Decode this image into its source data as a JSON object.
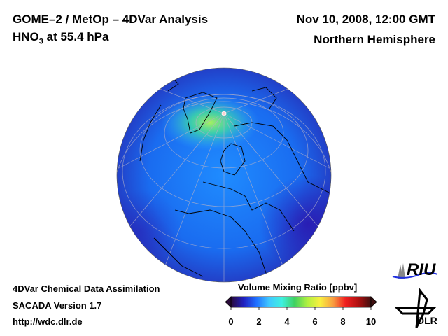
{
  "header": {
    "title_line1": "GOME–2 / MetOp – 4DVar Analysis",
    "species": "HNO",
    "species_sub": "3",
    "level_text": " at 55.4 hPa",
    "date": "Nov 10, 2008, 12:00 GMT",
    "region": "Northern Hemisphere"
  },
  "footer": {
    "line1": "4DVar Chemical Data Assimilation",
    "line2": "SACADA Version 1.7",
    "line3": "http://wdc.dlr.de"
  },
  "colorbar": {
    "title": "Volume Mixing Ratio [ppbv]",
    "ticks": [
      "0",
      "2",
      "4",
      "6",
      "8",
      "10"
    ],
    "range": [
      0,
      10
    ],
    "colors": [
      "#2a0a3a",
      "#2020c0",
      "#1f6fff",
      "#3fc8ff",
      "#3ff0e0",
      "#3fd060",
      "#b0f040",
      "#f8f040",
      "#f8a040",
      "#f02020",
      "#b01010",
      "#401010"
    ]
  },
  "logos": {
    "riu": "RIU",
    "dlr": "DLR"
  }
}
